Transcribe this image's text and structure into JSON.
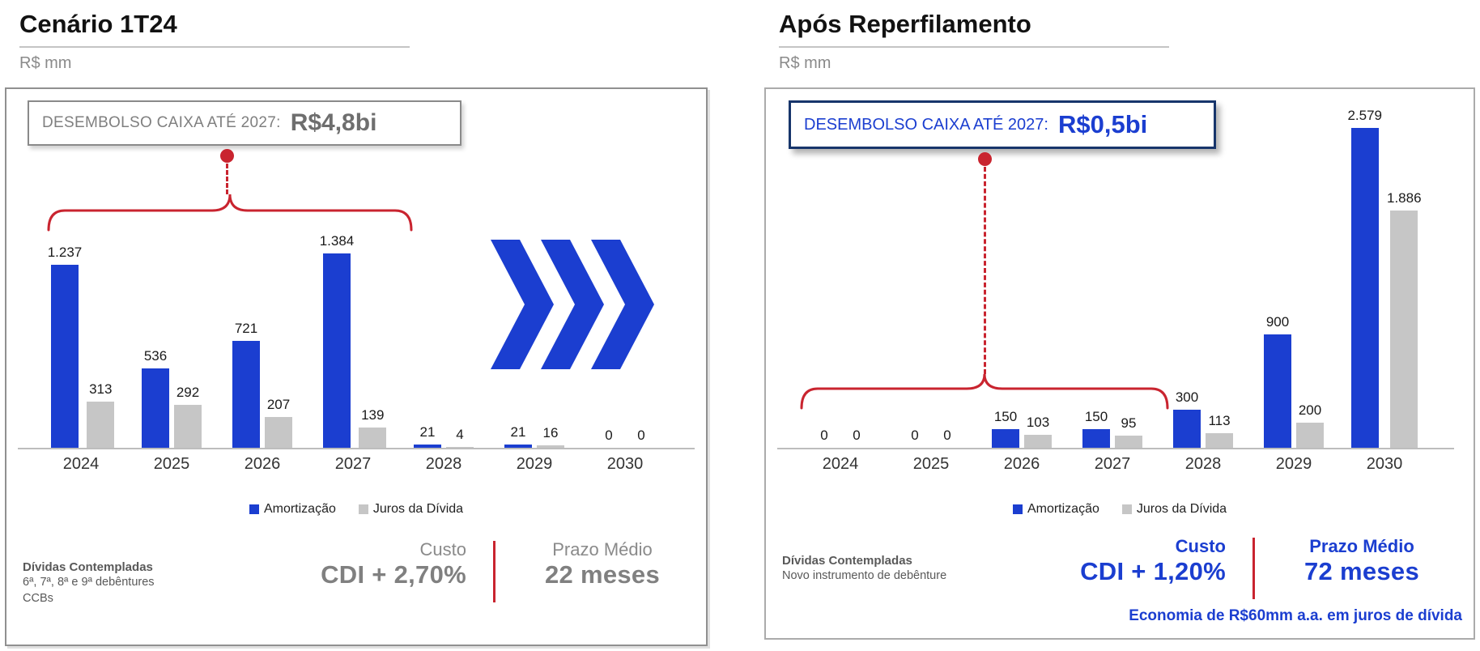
{
  "colors": {
    "accent_blue": "#1B3ED0",
    "navy_border": "#17356B",
    "accent_red": "#C9242F",
    "bar_gray": "#C6C6C6",
    "gray_text": "#7F7F7F"
  },
  "panels": [
    {
      "title": "Cenário 1T24",
      "unit": "R$ mm",
      "callout": {
        "label": "DESEMBOLSO CAIXA ATÉ 2027:",
        "value": "R$4,8bi"
      },
      "legend": [
        "Amortização",
        "Juros da Dívida"
      ],
      "footer": {
        "debts_title": "Dívidas Contempladas",
        "debts_lines": [
          "6ª, 7ª, 8ª e 9ª debêntures",
          "CCBs"
        ],
        "cost_label": "Custo",
        "cost_value": "CDI + 2,70%",
        "term_label": "Prazo Médio",
        "term_value": "22 meses"
      }
    },
    {
      "title": "Após Reperfilamento",
      "unit": "R$ mm",
      "callout": {
        "label": "DESEMBOLSO CAIXA ATÉ 2027:",
        "value": "R$0,5bi"
      },
      "legend": [
        "Amortização",
        "Juros da Dívida"
      ],
      "footer": {
        "debts_title": "Dívidas Contempladas",
        "debts_lines": [
          "Novo instrumento de debênture"
        ],
        "cost_label": "Custo",
        "cost_value": "CDI + 1,20%",
        "term_label": "Prazo Médio",
        "term_value": "72 meses",
        "economy_note": "Economia de R$60mm a.a. em juros de dívida"
      }
    }
  ],
  "chart_data": [
    {
      "type": "bar",
      "title": "Cenário 1T24",
      "unit": "R$ mm",
      "categories": [
        "2024",
        "2025",
        "2026",
        "2027",
        "2028",
        "2029",
        "2030"
      ],
      "series": [
        {
          "name": "Amortização",
          "color": "#1B3ED0",
          "values": [
            1237,
            536,
            721,
            1384,
            21,
            21,
            0
          ],
          "labels": [
            "1.237",
            "536",
            "721",
            "1.384",
            "21",
            "21",
            "0"
          ]
        },
        {
          "name": "Juros da Dívida",
          "color": "#C6C6C6",
          "values": [
            313,
            292,
            207,
            139,
            4,
            16,
            0
          ],
          "labels": [
            "313",
            "292",
            "207",
            "139",
            "4",
            "16",
            "0"
          ]
        }
      ],
      "ylim": [
        0,
        1450
      ],
      "grid": false,
      "legend_position": "bottom",
      "annotation": {
        "text": "DESEMBOLSO CAIXA ATÉ 2027: R$4,8bi",
        "brace_span": [
          "2024",
          "2027"
        ]
      }
    },
    {
      "type": "bar",
      "title": "Após Reperfilamento",
      "unit": "R$ mm",
      "categories": [
        "2024",
        "2025",
        "2026",
        "2027",
        "2028",
        "2029",
        "2030"
      ],
      "series": [
        {
          "name": "Amortização",
          "color": "#1B3ED0",
          "values": [
            0,
            0,
            150,
            150,
            300,
            900,
            2579
          ],
          "labels": [
            "0",
            "0",
            "150",
            "150",
            "300",
            "900",
            "2.579"
          ]
        },
        {
          "name": "Juros da Dívida",
          "color": "#C6C6C6",
          "values": [
            0,
            0,
            103,
            95,
            113,
            200,
            1886
          ],
          "labels": [
            "0",
            "0",
            "103",
            "95",
            "113",
            "200",
            "1.886"
          ]
        }
      ],
      "ylim": [
        0,
        2700
      ],
      "grid": false,
      "legend_position": "bottom",
      "annotation": {
        "text": "DESEMBOLSO CAIXA ATÉ 2027: R$0,5bi",
        "brace_span": [
          "2024",
          "2027"
        ]
      }
    }
  ]
}
